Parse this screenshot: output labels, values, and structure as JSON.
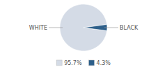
{
  "chart_data": {
    "type": "pie",
    "categories": [
      "WHITE",
      "BLACK"
    ],
    "values": [
      95.7,
      4.3
    ],
    "value_labels": [
      "95.7%",
      "4.3%"
    ],
    "colors": [
      "#d4dbe6",
      "#2d5f8a"
    ],
    "legend": "bottom"
  }
}
